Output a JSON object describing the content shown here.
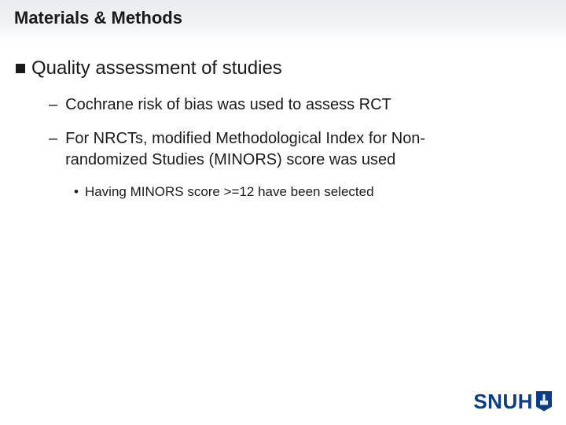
{
  "slide": {
    "title": "Materials & Methods",
    "bullet1": {
      "text": "Quality assessment of studies"
    },
    "sub1": {
      "text": "Cochrane risk of bias was used to assess RCT"
    },
    "sub2": {
      "text": "For NRCTs, modified Methodological Index for Non-randomized Studies (MINORS) score was used"
    },
    "subsub1": {
      "text": "Having MINORS score >=12 have been selected"
    }
  },
  "logo": {
    "text": "SNUH",
    "color": "#0b3e85"
  },
  "colors": {
    "title_bg_start": "#e9ebee",
    "title_bg_end": "#ffffff",
    "text": "#1a1a1a",
    "background": "#ffffff"
  },
  "typography": {
    "title_fontsize": 22,
    "lvl1_fontsize": 24,
    "lvl2_fontsize": 20,
    "lvl3_fontsize": 17,
    "logo_fontsize": 26,
    "font_family": "Arial"
  }
}
